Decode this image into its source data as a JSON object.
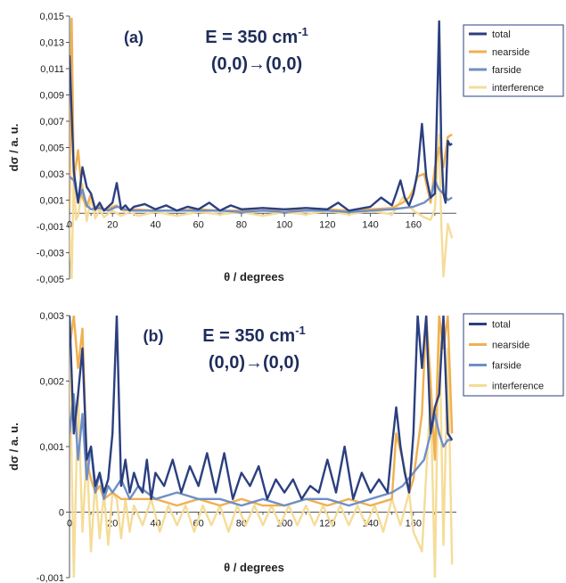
{
  "chart_data": [
    {
      "type": "line",
      "panel": "(a)",
      "title_energy": "E = 350 cm",
      "title_energy_sup": "-1",
      "title_transition": "(0,0)→(0,0)",
      "xlabel": "θ / degrees",
      "ylabel": "dσ / a. u.",
      "xlim": [
        0,
        180
      ],
      "ylim": [
        -0.005,
        0.015
      ],
      "xticks": [
        "0",
        "20",
        "40",
        "60",
        "80",
        "100",
        "120",
        "140",
        "160"
      ],
      "yticks": [
        "-0,005",
        "-0,003",
        "-0,001",
        "0,001",
        "0,003",
        "0,005",
        "0,007",
        "0,009",
        "0,011",
        "0,013",
        "0,015"
      ],
      "legend_position": "top-right",
      "series": [
        {
          "name": "total",
          "color": "#2b3f7f",
          "x": [
            0,
            2,
            4,
            6,
            8,
            10,
            12,
            14,
            16,
            18,
            20,
            22,
            24,
            26,
            28,
            30,
            35,
            40,
            45,
            50,
            55,
            60,
            65,
            70,
            75,
            80,
            90,
            100,
            110,
            120,
            125,
            130,
            140,
            145,
            150,
            152,
            154,
            156,
            158,
            160,
            162,
            164,
            166,
            168,
            170,
            171,
            172,
            173,
            174,
            175,
            176,
            177,
            178
          ],
          "y": [
            0.012,
            0.0032,
            0.0008,
            0.0035,
            0.002,
            0.0015,
            0.0003,
            0.0008,
            0.0002,
            0.0005,
            0.0008,
            0.0023,
            0.0003,
            0.0006,
            0.0002,
            0.0005,
            0.0007,
            0.0003,
            0.0006,
            0.0002,
            0.0005,
            0.0003,
            0.0008,
            0.0002,
            0.0006,
            0.0003,
            0.0004,
            0.0003,
            0.0004,
            0.0003,
            0.0008,
            0.0002,
            0.0005,
            0.0012,
            0.0006,
            0.0015,
            0.0025,
            0.0012,
            0.0006,
            0.0015,
            0.0032,
            0.0068,
            0.0028,
            0.0012,
            0.0015,
            0.008,
            0.0146,
            0.005,
            0.0015,
            0.0008,
            0.0055,
            0.0052,
            0.0053
          ]
        },
        {
          "name": "nearside",
          "color": "#f0b050",
          "x": [
            0,
            1,
            2,
            4,
            6,
            8,
            10,
            12,
            14,
            16,
            18,
            20,
            22,
            25,
            30,
            40,
            50,
            60,
            70,
            80,
            90,
            100,
            110,
            120,
            130,
            140,
            150,
            155,
            158,
            160,
            162,
            165,
            168,
            170,
            172,
            174,
            176,
            178
          ],
          "y": [
            0.0003,
            0.0148,
            0.0025,
            0.0048,
            0.0012,
            0.0005,
            0.0015,
            0.0002,
            0.0006,
            0.0002,
            0.0003,
            0.0005,
            0.0006,
            0.0002,
            0.0003,
            0.0002,
            0.0002,
            0.0003,
            0.0002,
            0.0002,
            0.0002,
            0.0003,
            0.0002,
            0.0003,
            0.0002,
            0.0003,
            0.0004,
            0.0008,
            0.0012,
            0.0018,
            0.0028,
            0.003,
            0.0008,
            0.0035,
            0.005,
            0.0035,
            0.0058,
            0.006
          ]
        },
        {
          "name": "farside",
          "color": "#6f8fc6",
          "x": [
            0,
            2,
            4,
            6,
            8,
            10,
            14,
            18,
            22,
            26,
            30,
            40,
            50,
            60,
            70,
            80,
            90,
            100,
            110,
            120,
            130,
            140,
            150,
            160,
            165,
            168,
            170,
            172,
            174,
            176,
            178
          ],
          "y": [
            0.0028,
            0.0025,
            0.001,
            0.0018,
            0.0006,
            0.0003,
            0.0004,
            0.0002,
            0.0005,
            0.0003,
            0.0002,
            0.0002,
            0.0002,
            0.0002,
            0.0002,
            0.0001,
            0.0002,
            0.0001,
            0.0002,
            0.0002,
            0.0001,
            0.0002,
            0.0003,
            0.0005,
            0.0008,
            0.0012,
            0.0025,
            0.0018,
            0.0015,
            0.001,
            0.0012
          ]
        },
        {
          "name": "interference",
          "color": "#f5dc98",
          "x": [
            0,
            1,
            2,
            3,
            4,
            6,
            8,
            10,
            12,
            14,
            16,
            20,
            24,
            28,
            32,
            40,
            50,
            60,
            70,
            80,
            90,
            100,
            110,
            120,
            130,
            140,
            150,
            155,
            160,
            165,
            168,
            170,
            172,
            173,
            174,
            176,
            178
          ],
          "y": [
            -0.001,
            -0.005,
            0.003,
            -0.0005,
            -0.0002,
            0.0022,
            -0.0006,
            0.0012,
            -0.0004,
            0.0003,
            -0.0003,
            0.0002,
            -0.0002,
            0.0001,
            -0.0002,
            0.0001,
            -0.0002,
            0.0001,
            -0.0001,
            0.0001,
            -0.0002,
            0.0001,
            -0.0001,
            0.0002,
            -0.0001,
            0.0002,
            -0.0001,
            0.0012,
            0.0002,
            -0.0003,
            -0.0005,
            0.0003,
            0.006,
            -0.0008,
            -0.0048,
            -0.0008,
            -0.0019
          ]
        }
      ]
    },
    {
      "type": "line",
      "panel": "(b)",
      "title_energy": "E = 350 cm",
      "title_energy_sup": "-1",
      "title_transition": "(0,0)→(0,0)",
      "xlabel": "θ / degrees",
      "ylabel": "dσ / a. u.",
      "xlim": [
        0,
        180
      ],
      "ylim": [
        -0.001,
        0.003
      ],
      "xticks": [
        "0",
        "20",
        "40",
        "60",
        "80",
        "100",
        "120",
        "140",
        "160"
      ],
      "yticks": [
        "-0,001",
        "0",
        "0,001",
        "0,002",
        "0,003"
      ],
      "legend_position": "top-right",
      "series": [
        {
          "name": "total",
          "color": "#2b3f7f",
          "x": [
            0,
            2,
            4,
            6,
            8,
            10,
            12,
            14,
            16,
            18,
            20,
            22,
            24,
            26,
            28,
            30,
            32,
            34,
            36,
            38,
            40,
            44,
            48,
            52,
            56,
            60,
            64,
            68,
            72,
            76,
            80,
            84,
            88,
            92,
            96,
            100,
            104,
            108,
            112,
            116,
            120,
            124,
            128,
            132,
            136,
            140,
            144,
            148,
            150,
            152,
            154,
            156,
            158,
            160,
            162,
            164,
            166,
            168,
            170,
            172,
            174,
            176,
            178
          ],
          "y": [
            0.003,
            0.0012,
            0.0018,
            0.0025,
            0.0008,
            0.001,
            0.0004,
            0.0006,
            0.0003,
            0.0005,
            0.0012,
            0.003,
            0.0004,
            0.0008,
            0.0003,
            0.0006,
            0.0004,
            0.0003,
            0.0008,
            0.0002,
            0.0006,
            0.0004,
            0.0008,
            0.0003,
            0.0007,
            0.0004,
            0.0009,
            0.0003,
            0.0009,
            0.0002,
            0.0006,
            0.0004,
            0.0007,
            0.0002,
            0.0005,
            0.0003,
            0.0005,
            0.0002,
            0.0004,
            0.0003,
            0.0008,
            0.0003,
            0.001,
            0.0002,
            0.0006,
            0.0003,
            0.0005,
            0.0003,
            0.001,
            0.0016,
            0.001,
            0.0006,
            0.0003,
            0.0012,
            0.003,
            0.0022,
            0.003,
            0.0012,
            0.0016,
            0.0018,
            0.003,
            0.0012,
            0.0011
          ]
        },
        {
          "name": "nearside",
          "color": "#f0b050",
          "x": [
            0,
            2,
            4,
            6,
            8,
            10,
            12,
            14,
            16,
            20,
            24,
            30,
            40,
            50,
            60,
            70,
            80,
            90,
            100,
            110,
            120,
            130,
            140,
            150,
            152,
            155,
            158,
            160,
            164,
            166,
            168,
            170,
            172,
            174,
            176,
            178
          ],
          "y": [
            0.0025,
            0.003,
            0.0022,
            0.0028,
            0.0008,
            0.0005,
            0.0003,
            0.0004,
            0.0002,
            0.0003,
            0.0002,
            0.0002,
            0.0002,
            0.0001,
            0.0002,
            0.0001,
            0.0002,
            0.0001,
            0.0001,
            0.0002,
            0.0001,
            0.0002,
            0.0001,
            0.0002,
            0.0012,
            0.0008,
            0.0003,
            0.0005,
            0.0015,
            0.003,
            0.002,
            0.0008,
            0.003,
            0.0025,
            0.003,
            0.0012
          ]
        },
        {
          "name": "farside",
          "color": "#6f8fc6",
          "x": [
            0,
            2,
            4,
            6,
            8,
            10,
            12,
            14,
            16,
            18,
            20,
            24,
            28,
            32,
            36,
            40,
            50,
            60,
            70,
            80,
            90,
            100,
            110,
            120,
            130,
            140,
            150,
            155,
            160,
            165,
            168,
            170,
            172,
            174,
            176,
            178
          ],
          "y": [
            0.0012,
            0.0018,
            0.0008,
            0.0015,
            0.0005,
            0.001,
            0.0003,
            0.0006,
            0.0002,
            0.0004,
            0.0003,
            0.0005,
            0.0002,
            0.0004,
            0.0003,
            0.0002,
            0.0003,
            0.0002,
            0.0002,
            0.0001,
            0.0002,
            0.0001,
            0.0002,
            0.0002,
            0.0001,
            0.0002,
            0.0003,
            0.0004,
            0.0006,
            0.0008,
            0.0012,
            0.0015,
            0.0012,
            0.001,
            0.0011,
            0.0011
          ]
        },
        {
          "name": "interference",
          "color": "#f5dc98",
          "x": [
            0,
            2,
            4,
            6,
            8,
            10,
            12,
            14,
            16,
            18,
            20,
            22,
            24,
            26,
            28,
            30,
            34,
            38,
            42,
            46,
            50,
            54,
            58,
            62,
            66,
            70,
            74,
            78,
            82,
            86,
            90,
            94,
            98,
            102,
            106,
            110,
            114,
            118,
            122,
            126,
            130,
            134,
            138,
            142,
            146,
            150,
            154,
            158,
            160,
            164,
            168,
            170,
            172,
            174,
            176,
            178
          ],
          "y": [
            0.0025,
            -0.001,
            0.0018,
            -0.0003,
            0.0009,
            -0.0006,
            0.0005,
            -0.0004,
            0.0003,
            -0.0005,
            0.0003,
            0.0002,
            -0.0004,
            0.0002,
            -0.0003,
            0.0001,
            -0.0002,
            0.0002,
            -0.0003,
            0.0001,
            -0.0002,
            0.0001,
            -0.0003,
            0.0001,
            -0.0002,
            0.0001,
            -0.0003,
            0.0001,
            -0.0002,
            0.0001,
            -0.0002,
            0.0001,
            -0.0002,
            0.0001,
            -0.0002,
            0.0001,
            -0.0002,
            0.0001,
            -0.0002,
            0.0001,
            -0.0002,
            0.0001,
            -0.0002,
            0.0001,
            -0.0003,
            0.0002,
            -0.0002,
            0.0003,
            -0.0003,
            -0.0006,
            0.0018,
            -0.001,
            0.003,
            -0.0005,
            0.0025,
            -0.0008
          ]
        }
      ]
    }
  ]
}
